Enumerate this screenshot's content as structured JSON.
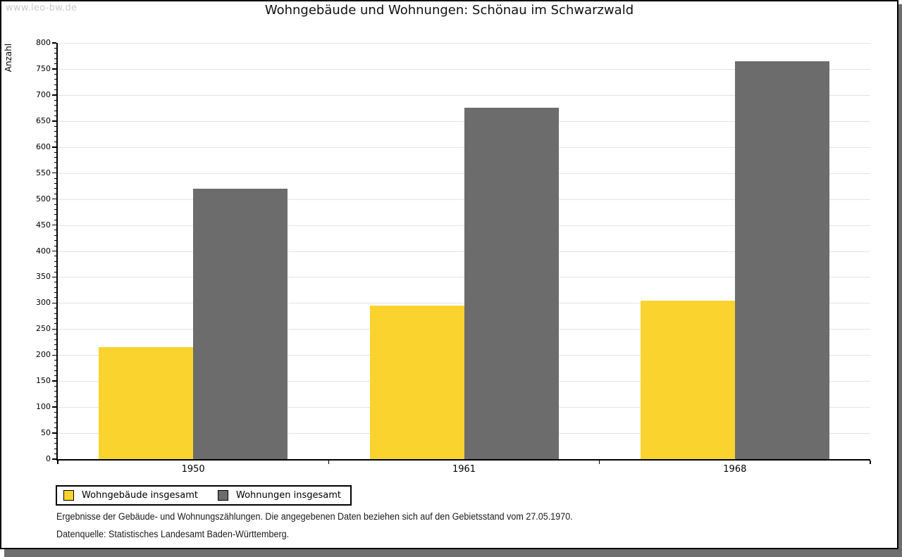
{
  "watermark": "www.leo-bw.de",
  "title": "Wohngebäude und Wohnungen: Schönau im Schwarzwald",
  "chart_data": {
    "type": "bar",
    "title": "Wohngebäude und Wohnungen: Schönau im Schwarzwald",
    "ylabel": "Anzahl",
    "xlabel": "",
    "categories": [
      "1950",
      "1961",
      "1968"
    ],
    "series": [
      {
        "name": "Wohngebäude insgesamt",
        "color": "#FBD32E",
        "values": [
          215,
          295,
          305
        ]
      },
      {
        "name": "Wohnungen insgesamt",
        "color": "#6C6C6C",
        "values": [
          520,
          675,
          765
        ]
      }
    ],
    "ylim": [
      0,
      800
    ],
    "ytick_step": 50,
    "y_minor_tick_step": 10,
    "grid": true,
    "gridline_color": "#E4E4E4",
    "legend_position": "bottom-left"
  },
  "footnotes": [
    "Ergebnisse der Gebäude- und Wohnungszählungen. Die angegebenen Daten beziehen sich auf den Gebietsstand vom 27.05.1970.",
    "Datenquelle: Statistisches Landesamt Baden-Württemberg."
  ]
}
